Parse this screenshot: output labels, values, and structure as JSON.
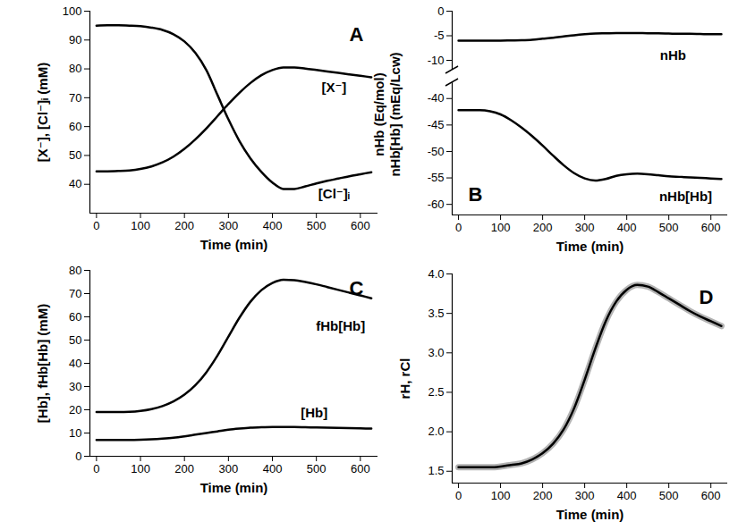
{
  "chart_data": [
    {
      "type": "line",
      "title": "A",
      "xlabel": "Time (min)",
      "ylabel": "[X⁻], [Cl⁻]ᵢ (mM)",
      "x": [
        0,
        25,
        50,
        75,
        100,
        125,
        150,
        175,
        200,
        225,
        250,
        275,
        300,
        325,
        350,
        375,
        400,
        425,
        450,
        475,
        500,
        525,
        550,
        575,
        600,
        625
      ],
      "series": [
        {
          "name": "[X⁻]",
          "color": "#000000",
          "line_style": "solid",
          "values": [
            44.5,
            44.5,
            44.6,
            44.8,
            45.3,
            46.2,
            47.6,
            49.6,
            52.3,
            55.6,
            59.4,
            63.6,
            67.8,
            71.7,
            75.1,
            77.8,
            79.6,
            80.5,
            80.5,
            80.1,
            79.6,
            79.1,
            78.6,
            78.1,
            77.6,
            77.1
          ]
        },
        {
          "name": "[Cl⁻]ᵢ",
          "color": "#000000",
          "line_style": "solid",
          "values": [
            95,
            95.1,
            95.1,
            95,
            94.8,
            94.3,
            93.5,
            92,
            89.5,
            85.5,
            79.5,
            71,
            62.5,
            55,
            49,
            44.3,
            40.6,
            38.4,
            38.4,
            39.3,
            40.3,
            41.2,
            42,
            42.8,
            43.5,
            44.2
          ]
        }
      ],
      "xlim": [
        -15,
        640
      ],
      "xticks": [
        0,
        100,
        200,
        300,
        400,
        500,
        600
      ],
      "ylim": [
        30,
        100
      ],
      "yticks": [
        40,
        50,
        60,
        70,
        80,
        90,
        100
      ],
      "annotations": [
        {
          "text": "[X⁻]",
          "x": 540,
          "y": 73.5
        },
        {
          "text": "[Cl⁻]ᵢ",
          "x": 540,
          "y": 36.5
        }
      ]
    },
    {
      "type": "line",
      "title": "B",
      "xlabel": "Time (min)",
      "ylabel": "nHb[Hb] (mEq/Lcw)",
      "y2label": "nHb (Eq/mol)",
      "x": [
        0,
        25,
        50,
        75,
        100,
        125,
        150,
        175,
        200,
        225,
        250,
        275,
        300,
        325,
        350,
        375,
        400,
        425,
        450,
        475,
        500,
        525,
        550,
        575,
        600,
        625
      ],
      "series": [
        {
          "name": "nHb",
          "color": "#000000",
          "line_style": "solid",
          "axis": "y2",
          "values": [
            -6,
            -6,
            -6,
            -6,
            -6,
            -5.95,
            -5.9,
            -5.8,
            -5.6,
            -5.4,
            -5.15,
            -4.9,
            -4.7,
            -4.55,
            -4.5,
            -4.45,
            -4.45,
            -4.45,
            -4.5,
            -4.5,
            -4.55,
            -4.6,
            -4.6,
            -4.65,
            -4.7,
            -4.7
          ]
        },
        {
          "name": "nHb[Hb]",
          "color": "#000000",
          "line_style": "solid",
          "values": [
            -42.2,
            -42.2,
            -42.2,
            -42.4,
            -43,
            -44.1,
            -45.5,
            -47.1,
            -48.9,
            -50.8,
            -52.6,
            -54.1,
            -55.1,
            -55.5,
            -55.2,
            -54.6,
            -54.3,
            -54.2,
            -54.3,
            -54.5,
            -54.7,
            -54.8,
            -54.9,
            -55,
            -55.1,
            -55.2
          ]
        }
      ],
      "xlim": [
        -15,
        640
      ],
      "xticks": [
        0,
        100,
        200,
        300,
        400,
        500,
        600
      ],
      "ylim": [
        -62,
        -37
      ],
      "yticks": [
        -40,
        -45,
        -50,
        -55,
        -60
      ],
      "y2lim": [
        -12,
        0
      ],
      "y2ticks": [
        0,
        -5,
        -10
      ],
      "annotations": [
        {
          "text": "nHb",
          "x": 510,
          "y": -9,
          "axis": "y2"
        },
        {
          "text": "nHb[Hb]",
          "x": 540,
          "y": -58.5
        }
      ]
    },
    {
      "type": "line",
      "title": "C",
      "xlabel": "Time (min)",
      "ylabel": "[Hb], fHb[Hb] (mM)",
      "x": [
        0,
        25,
        50,
        75,
        100,
        125,
        150,
        175,
        200,
        225,
        250,
        275,
        300,
        325,
        350,
        375,
        400,
        425,
        450,
        475,
        500,
        525,
        550,
        575,
        600,
        625
      ],
      "series": [
        {
          "name": "fHb[Hb]",
          "color": "#000000",
          "line_style": "solid",
          "values": [
            19,
            19,
            19,
            19.1,
            19.5,
            20.3,
            21.6,
            23.6,
            26.5,
            30.6,
            36.2,
            43.3,
            51.5,
            59.6,
            66.5,
            71.5,
            74.6,
            76,
            75.8,
            75,
            74,
            72.8,
            71.6,
            70.4,
            69.2,
            68
          ]
        },
        {
          "name": "[Hb]",
          "color": "#000000",
          "line_style": "solid",
          "values": [
            7,
            7,
            7,
            7,
            7.1,
            7.3,
            7.6,
            8,
            8.6,
            9.3,
            10,
            10.7,
            11.4,
            11.9,
            12.3,
            12.5,
            12.6,
            12.6,
            12.6,
            12.5,
            12.4,
            12.3,
            12.2,
            12.1,
            12,
            11.9
          ]
        }
      ],
      "xlim": [
        -15,
        640
      ],
      "xticks": [
        0,
        100,
        200,
        300,
        400,
        500,
        600
      ],
      "ylim": [
        0,
        80
      ],
      "yticks": [
        0,
        10,
        20,
        30,
        40,
        50,
        60,
        70,
        80
      ],
      "annotations": [
        {
          "text": "fHb[Hb]",
          "x": 555,
          "y": 56
        },
        {
          "text": "[Hb]",
          "x": 495,
          "y": 18.5
        }
      ]
    },
    {
      "type": "line",
      "title": "D",
      "xlabel": "Time (min)",
      "ylabel": "rH, rCl",
      "x": [
        0,
        25,
        50,
        75,
        100,
        125,
        150,
        175,
        200,
        225,
        250,
        275,
        300,
        325,
        350,
        375,
        400,
        425,
        450,
        475,
        500,
        525,
        550,
        575,
        600,
        625
      ],
      "series": [
        {
          "name": "rH",
          "color": "#b3b3b3",
          "line_style": "thick",
          "values": [
            1.55,
            1.55,
            1.55,
            1.55,
            1.56,
            1.58,
            1.6,
            1.65,
            1.73,
            1.85,
            2.03,
            2.3,
            2.66,
            3.05,
            3.4,
            3.65,
            3.8,
            3.86,
            3.84,
            3.77,
            3.69,
            3.61,
            3.53,
            3.46,
            3.4,
            3.34
          ]
        },
        {
          "name": "rCl",
          "color": "#000000",
          "line_style": "solid",
          "values": [
            1.55,
            1.55,
            1.55,
            1.55,
            1.56,
            1.58,
            1.6,
            1.65,
            1.73,
            1.85,
            2.03,
            2.3,
            2.66,
            3.05,
            3.4,
            3.65,
            3.8,
            3.86,
            3.84,
            3.77,
            3.69,
            3.61,
            3.53,
            3.46,
            3.4,
            3.34
          ]
        }
      ],
      "xlim": [
        -15,
        640
      ],
      "xticks": [
        0,
        100,
        200,
        300,
        400,
        500,
        600
      ],
      "ylim": [
        1.35,
        4
      ],
      "yticks": [
        1.5,
        {
          "value": 2,
          "label": "2.0"
        },
        2.5,
        {
          "value": 3,
          "label": "3.0"
        },
        3.5,
        {
          "value": 4,
          "label": "4.0"
        }
      ],
      "annotations": []
    }
  ]
}
